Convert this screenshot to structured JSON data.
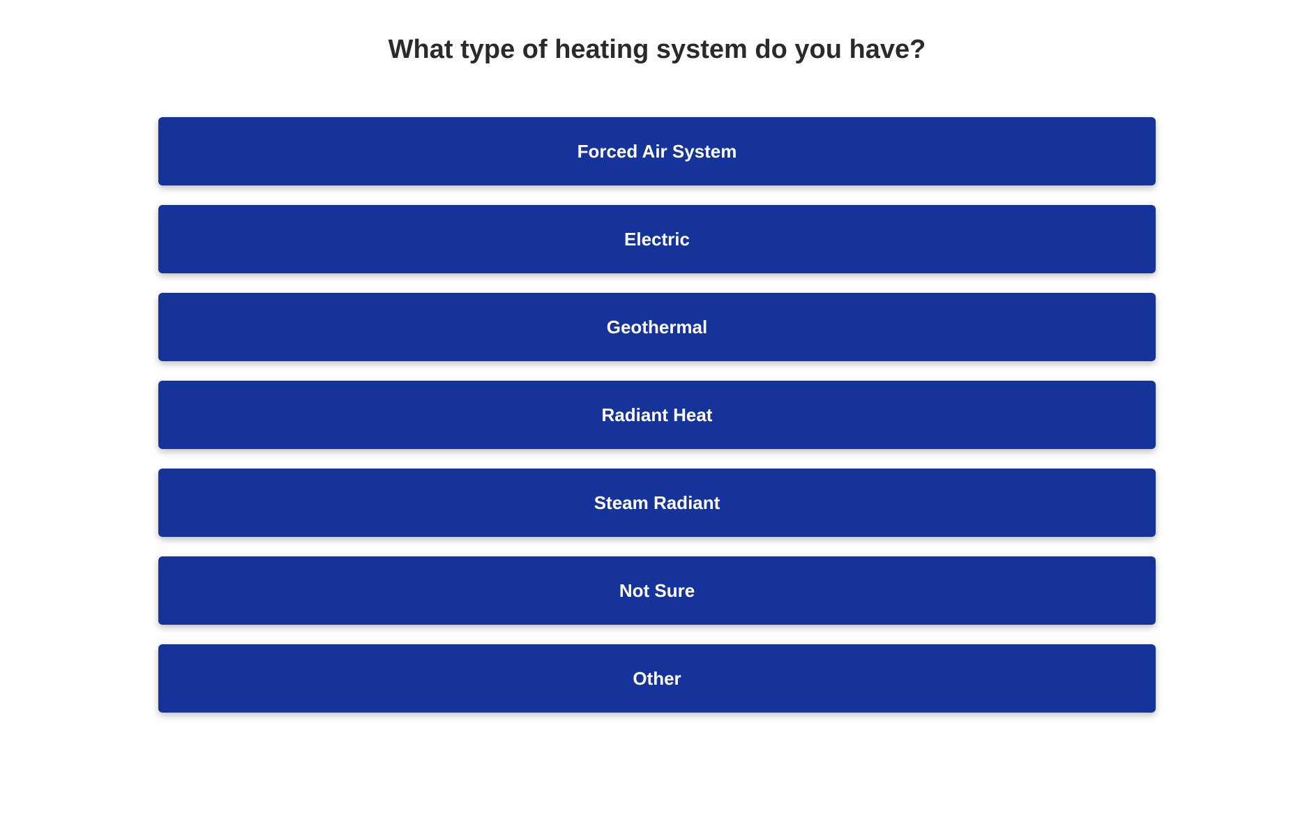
{
  "question": {
    "title": "What type of heating system do you have?"
  },
  "options": [
    {
      "label": "Forced Air System"
    },
    {
      "label": "Electric"
    },
    {
      "label": "Geothermal"
    },
    {
      "label": "Radiant Heat"
    },
    {
      "label": "Steam Radiant"
    },
    {
      "label": "Not Sure"
    },
    {
      "label": "Other"
    }
  ],
  "styling": {
    "button_background": "#16339a",
    "button_text_color": "#ffffff",
    "title_color": "#2a2a2a",
    "page_background": "#ffffff",
    "button_height": 98,
    "button_gap": 28,
    "button_radius": 6,
    "title_fontsize": 38,
    "button_fontsize": 26
  }
}
